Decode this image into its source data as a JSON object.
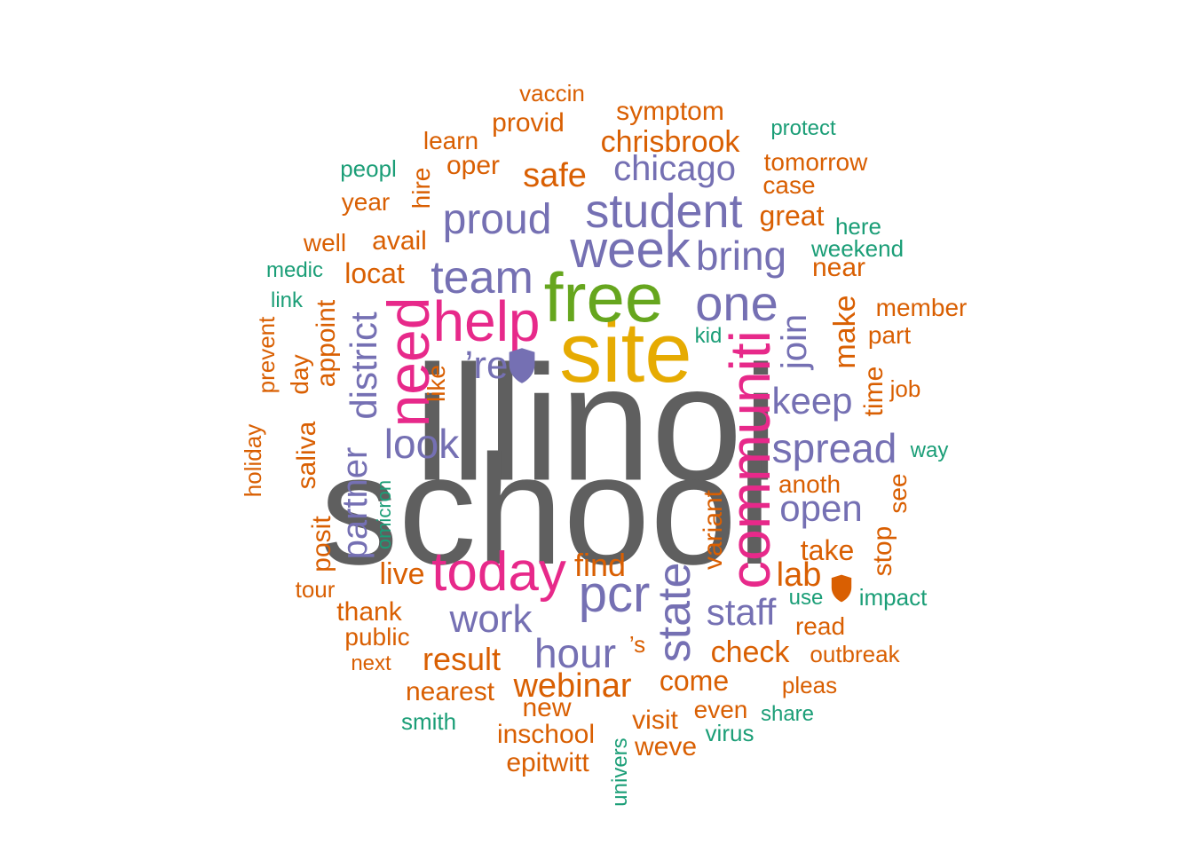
{
  "palette": {
    "gray": "#5f5f5f",
    "gold": "#e6ab02",
    "green": "#66a61e",
    "pink": "#e7298a",
    "purple": "#7570b3",
    "orange": "#d95f02",
    "teal": "#1b9e77"
  },
  "words": [
    {
      "text": "illinoi",
      "size": 185,
      "color": "gray",
      "rot": 0
    },
    {
      "text": "school",
      "size": 176,
      "color": "gray",
      "rot": 0
    },
    {
      "text": "site",
      "size": 96,
      "color": "gold",
      "rot": 0
    },
    {
      "text": "free",
      "size": 78,
      "color": "green",
      "rot": 0
    },
    {
      "text": "communiti",
      "size": 64,
      "color": "pink",
      "rot": 90
    },
    {
      "text": "need",
      "size": 66,
      "color": "pink",
      "rot": 90
    },
    {
      "text": "help",
      "size": 64,
      "color": "pink",
      "rot": 0
    },
    {
      "text": "today",
      "size": 62,
      "color": "pink",
      "rot": 0
    },
    {
      "text": "week",
      "size": 58,
      "color": "purple",
      "rot": 0
    },
    {
      "text": "student",
      "size": 54,
      "color": "purple",
      "rot": 0
    },
    {
      "text": "pcr",
      "size": 58,
      "color": "purple",
      "rot": 0
    },
    {
      "text": "one",
      "size": 56,
      "color": "purple",
      "rot": 0
    },
    {
      "text": "team",
      "size": 52,
      "color": "purple",
      "rot": 0
    },
    {
      "text": "state",
      "size": 52,
      "color": "purple",
      "rot": 90
    },
    {
      "text": "proud",
      "size": 48,
      "color": "purple",
      "rot": 0
    },
    {
      "text": "bring",
      "size": 46,
      "color": "purple",
      "rot": 0
    },
    {
      "text": "spread",
      "size": 46,
      "color": "purple",
      "rot": 0
    },
    {
      "text": "look",
      "size": 46,
      "color": "purple",
      "rot": 0
    },
    {
      "text": "hour",
      "size": 46,
      "color": "purple",
      "rot": 0
    },
    {
      "text": "work",
      "size": 44,
      "color": "purple",
      "rot": 0
    },
    {
      "text": "district",
      "size": 42,
      "color": "purple",
      "rot": 90
    },
    {
      "text": "partner",
      "size": 40,
      "color": "purple",
      "rot": 90
    },
    {
      "text": "keep",
      "size": 42,
      "color": "purple",
      "rot": 0
    },
    {
      "text": "open",
      "size": 42,
      "color": "purple",
      "rot": 0
    },
    {
      "text": "staff",
      "size": 42,
      "color": "purple",
      "rot": 0
    },
    {
      "text": "chicago",
      "size": 40,
      "color": "purple",
      "rot": 0
    },
    {
      "text": "join",
      "size": 40,
      "color": "purple",
      "rot": 90
    },
    {
      "text": "’re",
      "size": 44,
      "color": "purple",
      "rot": 0
    },
    {
      "text": "safe",
      "size": 38,
      "color": "orange",
      "rot": 0
    },
    {
      "text": "webinar",
      "size": 38,
      "color": "orange",
      "rot": 0
    },
    {
      "text": "result",
      "size": 36,
      "color": "orange",
      "rot": 0
    },
    {
      "text": "find",
      "size": 36,
      "color": "orange",
      "rot": 0
    },
    {
      "text": "lab",
      "size": 38,
      "color": "orange",
      "rot": 0
    },
    {
      "text": "check",
      "size": 34,
      "color": "orange",
      "rot": 0
    },
    {
      "text": "live",
      "size": 34,
      "color": "orange",
      "rot": 0
    },
    {
      "text": "chrisbrook",
      "size": 34,
      "color": "orange",
      "rot": 0
    },
    {
      "text": "make",
      "size": 34,
      "color": "orange",
      "rot": 90
    },
    {
      "text": "variant",
      "size": 30,
      "color": "orange",
      "rot": 90
    },
    {
      "text": "take",
      "size": 32,
      "color": "orange",
      "rot": 0
    },
    {
      "text": "come",
      "size": 32,
      "color": "orange",
      "rot": 0
    },
    {
      "text": "locat",
      "size": 32,
      "color": "orange",
      "rot": 0
    },
    {
      "text": "great",
      "size": 32,
      "color": "orange",
      "rot": 0
    },
    {
      "text": "nearest",
      "size": 30,
      "color": "orange",
      "rot": 0
    },
    {
      "text": "inschool",
      "size": 30,
      "color": "orange",
      "rot": 0
    },
    {
      "text": "provid",
      "size": 30,
      "color": "orange",
      "rot": 0
    },
    {
      "text": "avail",
      "size": 30,
      "color": "orange",
      "rot": 0
    },
    {
      "text": "oper",
      "size": 30,
      "color": "orange",
      "rot": 0
    },
    {
      "text": "thank",
      "size": 30,
      "color": "orange",
      "rot": 0
    },
    {
      "text": "near",
      "size": 30,
      "color": "orange",
      "rot": 0
    },
    {
      "text": "symptom",
      "size": 30,
      "color": "orange",
      "rot": 0
    },
    {
      "text": "time",
      "size": 30,
      "color": "orange",
      "rot": 90
    },
    {
      "text": "appoint",
      "size": 30,
      "color": "orange",
      "rot": 90
    },
    {
      "text": "saliva",
      "size": 30,
      "color": "orange",
      "rot": 90
    },
    {
      "text": "posit",
      "size": 30,
      "color": "orange",
      "rot": 90
    },
    {
      "text": "new",
      "size": 30,
      "color": "orange",
      "rot": 0
    },
    {
      "text": "epitwitt",
      "size": 30,
      "color": "orange",
      "rot": 0
    },
    {
      "text": "visit",
      "size": 30,
      "color": "orange",
      "rot": 0
    },
    {
      "text": "weve",
      "size": 30,
      "color": "orange",
      "rot": 0
    },
    {
      "text": "stop",
      "size": 30,
      "color": "orange",
      "rot": 90
    },
    {
      "text": "see",
      "size": 28,
      "color": "orange",
      "rot": 90
    },
    {
      "text": "anoth",
      "size": 28,
      "color": "orange",
      "rot": 0
    },
    {
      "text": "tomorrow",
      "size": 28,
      "color": "orange",
      "rot": 0
    },
    {
      "text": "learn",
      "size": 28,
      "color": "orange",
      "rot": 0
    },
    {
      "text": "public",
      "size": 28,
      "color": "orange",
      "rot": 0
    },
    {
      "text": "read",
      "size": 28,
      "color": "orange",
      "rot": 0
    },
    {
      "text": "case",
      "size": 28,
      "color": "orange",
      "rot": 0
    },
    {
      "text": "hire",
      "size": 28,
      "color": "orange",
      "rot": 90
    },
    {
      "text": "part",
      "size": 28,
      "color": "orange",
      "rot": 0
    },
    {
      "text": "member",
      "size": 28,
      "color": "orange",
      "rot": 0
    },
    {
      "text": "even",
      "size": 28,
      "color": "orange",
      "rot": 0
    },
    {
      "text": "year",
      "size": 28,
      "color": "orange",
      "rot": 0
    },
    {
      "text": "well",
      "size": 28,
      "color": "orange",
      "rot": 0
    },
    {
      "text": "day",
      "size": 28,
      "color": "orange",
      "rot": 90
    },
    {
      "text": "like",
      "size": 28,
      "color": "orange",
      "rot": 90
    },
    {
      "text": "pleas",
      "size": 26,
      "color": "orange",
      "rot": 0
    },
    {
      "text": "outbreak",
      "size": 26,
      "color": "orange",
      "rot": 0
    },
    {
      "text": "tour",
      "size": 26,
      "color": "orange",
      "rot": 0
    },
    {
      "text": "vaccin",
      "size": 26,
      "color": "orange",
      "rot": 0
    },
    {
      "text": "prevent",
      "size": 26,
      "color": "orange",
      "rot": 90
    },
    {
      "text": "job",
      "size": 26,
      "color": "orange",
      "rot": 0
    },
    {
      "text": "holiday",
      "size": 26,
      "color": "orange",
      "rot": 90
    },
    {
      "text": "next",
      "size": 24,
      "color": "orange",
      "rot": 0
    },
    {
      "text": "’s",
      "size": 26,
      "color": "orange",
      "rot": 0
    },
    {
      "text": "weekend",
      "size": 26,
      "color": "teal",
      "rot": 0
    },
    {
      "text": "impact",
      "size": 26,
      "color": "teal",
      "rot": 0
    },
    {
      "text": "protect",
      "size": 24,
      "color": "teal",
      "rot": 0
    },
    {
      "text": "here",
      "size": 26,
      "color": "teal",
      "rot": 0
    },
    {
      "text": "smith",
      "size": 26,
      "color": "teal",
      "rot": 0
    },
    {
      "text": "virus",
      "size": 26,
      "color": "teal",
      "rot": 0
    },
    {
      "text": "share",
      "size": 24,
      "color": "teal",
      "rot": 0
    },
    {
      "text": "peopl",
      "size": 26,
      "color": "teal",
      "rot": 0
    },
    {
      "text": "medic",
      "size": 24,
      "color": "teal",
      "rot": 0
    },
    {
      "text": "link",
      "size": 24,
      "color": "teal",
      "rot": 0
    },
    {
      "text": "way",
      "size": 24,
      "color": "teal",
      "rot": 0
    },
    {
      "text": "use",
      "size": 24,
      "color": "teal",
      "rot": 0
    },
    {
      "text": "kid",
      "size": 24,
      "color": "teal",
      "rot": 0
    },
    {
      "text": "univers",
      "size": 24,
      "color": "teal",
      "rot": 90
    },
    {
      "text": "omicron",
      "size": 22,
      "color": "teal",
      "rot": 90
    }
  ],
  "shields": [
    {
      "name": "purple-shield-icon",
      "color": "purple"
    },
    {
      "name": "orange-shield-icon",
      "color": "orange"
    }
  ]
}
